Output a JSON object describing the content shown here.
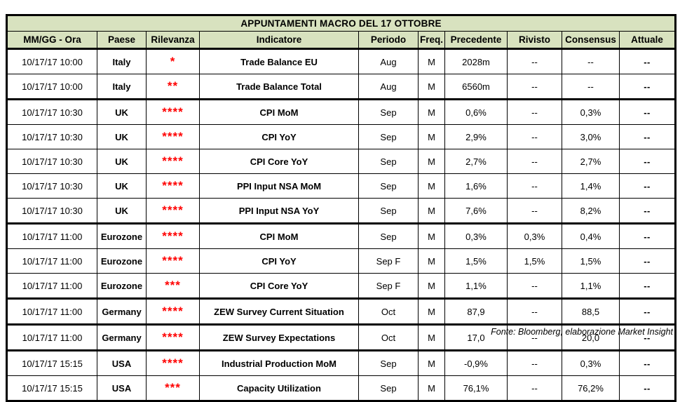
{
  "table": {
    "title": "APPUNTAMENTI MACRO DEL 17 OTTOBRE",
    "columns": [
      "MM/GG - Ora",
      "Paese",
      "Rilevanza",
      "Indicatore",
      "Periodo",
      "Freq.",
      "Precedente",
      "Rivisto",
      "Consensus",
      "Attuale"
    ],
    "rows": [
      {
        "time": "10/17/17 10:00",
        "country": "Italy",
        "stars": "*",
        "indicator": "Trade Balance EU",
        "period": "Aug",
        "freq": "M",
        "previous": "2028m",
        "revised": "--",
        "consensus": "--",
        "actual": "--",
        "group_start": false
      },
      {
        "time": "10/17/17 10:00",
        "country": "Italy",
        "stars": "**",
        "indicator": "Trade Balance Total",
        "period": "Aug",
        "freq": "M",
        "previous": "6560m",
        "revised": "--",
        "consensus": "--",
        "actual": "--",
        "group_start": false
      },
      {
        "time": "10/17/17 10:30",
        "country": "UK",
        "stars": "****",
        "indicator": "CPI MoM",
        "period": "Sep",
        "freq": "M",
        "previous": "0,6%",
        "revised": "--",
        "consensus": "0,3%",
        "actual": "--",
        "group_start": true
      },
      {
        "time": "10/17/17 10:30",
        "country": "UK",
        "stars": "****",
        "indicator": "CPI YoY",
        "period": "Sep",
        "freq": "M",
        "previous": "2,9%",
        "revised": "--",
        "consensus": "3,0%",
        "actual": "--",
        "group_start": false
      },
      {
        "time": "10/17/17 10:30",
        "country": "UK",
        "stars": "****",
        "indicator": "CPI Core YoY",
        "period": "Sep",
        "freq": "M",
        "previous": "2,7%",
        "revised": "--",
        "consensus": "2,7%",
        "actual": "--",
        "group_start": false
      },
      {
        "time": "10/17/17 10:30",
        "country": "UK",
        "stars": "****",
        "indicator": "PPI Input NSA MoM",
        "period": "Sep",
        "freq": "M",
        "previous": "1,6%",
        "revised": "--",
        "consensus": "1,4%",
        "actual": "--",
        "group_start": false
      },
      {
        "time": "10/17/17 10:30",
        "country": "UK",
        "stars": "****",
        "indicator": "PPI Input NSA YoY",
        "period": "Sep",
        "freq": "M",
        "previous": "7,6%",
        "revised": "--",
        "consensus": "8,2%",
        "actual": "--",
        "group_start": false
      },
      {
        "time": "10/17/17 11:00",
        "country": "Eurozone",
        "stars": "****",
        "indicator": "CPI MoM",
        "period": "Sep",
        "freq": "M",
        "previous": "0,3%",
        "revised": "0,3%",
        "consensus": "0,4%",
        "actual": "--",
        "group_start": true
      },
      {
        "time": "10/17/17 11:00",
        "country": "Eurozone",
        "stars": "****",
        "indicator": "CPI YoY",
        "period": "Sep F",
        "freq": "M",
        "previous": "1,5%",
        "revised": "1,5%",
        "consensus": "1,5%",
        "actual": "--",
        "group_start": false
      },
      {
        "time": "10/17/17 11:00",
        "country": "Eurozone",
        "stars": "***",
        "indicator": "CPI Core YoY",
        "period": "Sep F",
        "freq": "M",
        "previous": "1,1%",
        "revised": "--",
        "consensus": "1,1%",
        "actual": "--",
        "group_start": false
      },
      {
        "time": "10/17/17 11:00",
        "country": "Germany",
        "stars": "****",
        "indicator": "ZEW Survey Current Situation",
        "period": "Oct",
        "freq": "M",
        "previous": "87,9",
        "revised": "--",
        "consensus": "88,5",
        "actual": "--",
        "group_start": true
      },
      {
        "time": "10/17/17 11:00",
        "country": "Germany",
        "stars": "****",
        "indicator": "ZEW Survey Expectations",
        "period": "Oct",
        "freq": "M",
        "previous": "17,0",
        "revised": "--",
        "consensus": "20,0",
        "actual": "--",
        "group_start": true
      },
      {
        "time": "10/17/17 15:15",
        "country": "USA",
        "stars": "****",
        "indicator": "Industrial Production MoM",
        "period": "Sep",
        "freq": "M",
        "previous": "-0,9%",
        "revised": "--",
        "consensus": "0,3%",
        "actual": "--",
        "group_start": true
      },
      {
        "time": "10/17/17 15:15",
        "country": "USA",
        "stars": "***",
        "indicator": "Capacity Utilization",
        "period": "Sep",
        "freq": "M",
        "previous": "76,1%",
        "revised": "--",
        "consensus": "76,2%",
        "actual": "--",
        "group_start": false
      }
    ]
  },
  "footer": {
    "source": "Fonte: Bloomberg, elaborazione Market Insight"
  },
  "colors": {
    "header_bg": "#d8e2bf",
    "star_red": "#ff0000",
    "border": "#000000",
    "background": "#ffffff"
  }
}
